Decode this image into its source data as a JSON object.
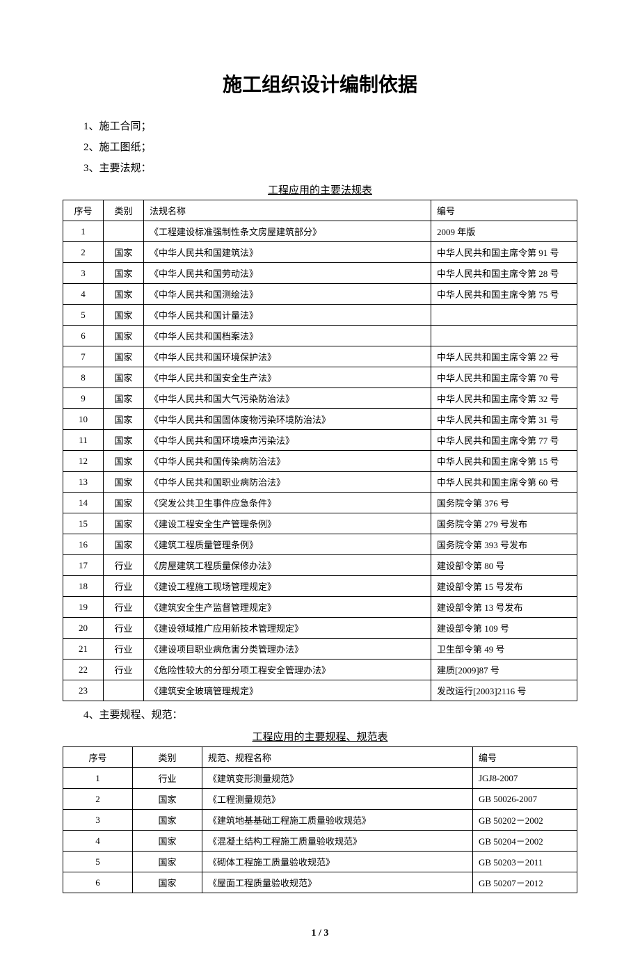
{
  "title": "施工组织设计编制依据",
  "listItems": [
    "1、施工合同；",
    "2、施工图纸；",
    "3、主要法规："
  ],
  "table1": {
    "caption": "工程应用的主要法规表",
    "headers": [
      "序号",
      "类别",
      "法规名称",
      "编号"
    ],
    "rows": [
      [
        "1",
        "",
        "《工程建设标准强制性条文房屋建筑部分》",
        "2009 年版"
      ],
      [
        "2",
        "国家",
        "《中华人民共和国建筑法》",
        "中华人民共和国主席令第 91 号"
      ],
      [
        "3",
        "国家",
        "《中华人民共和国劳动法》",
        "中华人民共和国主席令第 28 号"
      ],
      [
        "4",
        "国家",
        "《中华人民共和国测绘法》",
        "中华人民共和国主席令第 75 号"
      ],
      [
        "5",
        "国家",
        "《中华人民共和国计量法》",
        ""
      ],
      [
        "6",
        "国家",
        "《中华人民共和国档案法》",
        ""
      ],
      [
        "7",
        "国家",
        "《中华人民共和国环境保护法》",
        "中华人民共和国主席令第 22 号"
      ],
      [
        "8",
        "国家",
        "《中华人民共和国安全生产法》",
        "中华人民共和国主席令第 70 号"
      ],
      [
        "9",
        "国家",
        "《中华人民共和国大气污染防治法》",
        "中华人民共和国主席令第 32 号"
      ],
      [
        "10",
        "国家",
        "《中华人民共和国固体废物污染环境防治法》",
        "中华人民共和国主席令第 31 号"
      ],
      [
        "11",
        "国家",
        "《中华人民共和国环境噪声污染法》",
        "中华人民共和国主席令第 77 号"
      ],
      [
        "12",
        "国家",
        "《中华人民共和国传染病防治法》",
        "中华人民共和国主席令第 15 号"
      ],
      [
        "13",
        "国家",
        "《中华人民共和国职业病防治法》",
        "中华人民共和国主席令第 60 号"
      ],
      [
        "14",
        "国家",
        "《突发公共卫生事件应急条件》",
        "国务院令第 376 号"
      ],
      [
        "15",
        "国家",
        "《建设工程安全生产管理条例》",
        "国务院令第 279 号发布"
      ],
      [
        "16",
        "国家",
        "《建筑工程质量管理条例》",
        "国务院令第 393 号发布"
      ],
      [
        "17",
        "行业",
        "《房屋建筑工程质量保修办法》",
        "建设部令第 80 号"
      ],
      [
        "18",
        "行业",
        "《建设工程施工现场管理规定》",
        "建设部令第 15 号发布"
      ],
      [
        "19",
        "行业",
        "《建筑安全生产监督管理规定》",
        "建设部令第 13 号发布"
      ],
      [
        "20",
        "行业",
        "《建设领域推广应用新技术管理规定》",
        "建设部令第 109 号"
      ],
      [
        "21",
        "行业",
        "《建设项目职业病危害分类管理办法》",
        "卫生部令第 49 号"
      ],
      [
        "22",
        "行业",
        "《危险性较大的分部分项工程安全管理办法》",
        "建质[2009]87 号"
      ],
      [
        "23",
        "",
        "《建筑安全玻璃管理规定》",
        "发改运行[2003]2116 号"
      ]
    ]
  },
  "listItem4": "4、主要规程、规范：",
  "table2": {
    "caption": "工程应用的主要规程、规范表",
    "headers": [
      "序号",
      "类别",
      "规范、规程名称",
      "编号"
    ],
    "rows": [
      [
        "1",
        "行业",
        "《建筑变形测量规范》",
        "JGJ8-2007"
      ],
      [
        "2",
        "国家",
        "《工程测量规范》",
        "GB 50026-2007"
      ],
      [
        "3",
        "国家",
        "《建筑地基基础工程施工质量验收规范》",
        "GB 50202－2002"
      ],
      [
        "4",
        "国家",
        "《混凝土结构工程施工质量验收规范》",
        "GB 50204－2002"
      ],
      [
        "5",
        "国家",
        "《砌体工程施工质量验收规范》",
        "GB 50203－2011"
      ],
      [
        "6",
        "国家",
        "《屋面工程质量验收规范》",
        "GB 50207－2012"
      ]
    ]
  },
  "pageNumber": "1 / 3"
}
